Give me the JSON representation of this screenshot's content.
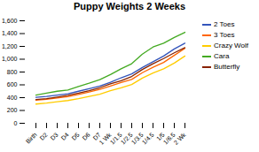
{
  "chart_data": {
    "type": "line",
    "title": "Puppy Weights 2 Weeks",
    "categories": [
      "Birth",
      "D2",
      "D3",
      "D4",
      "D5",
      "D6",
      "D7",
      "1 Wk",
      "1/1.5",
      "1/2.5",
      "1/3.5",
      "1/4.5",
      "1/5",
      "1/6.5",
      "2 Wk"
    ],
    "series": [
      {
        "name": "2 Toes",
        "color": "#3355BB",
        "values": [
          405,
          420,
          440,
          460,
          500,
          540,
          580,
          640,
          710,
          770,
          870,
          960,
          1050,
          1160,
          1250
        ]
      },
      {
        "name": "3 Toes",
        "color": "#FF6600",
        "values": [
          360,
          375,
          395,
          415,
          450,
          488,
          528,
          580,
          635,
          685,
          790,
          875,
          950,
          1060,
          1170
        ]
      },
      {
        "name": "Crazy Wolf",
        "color": "#FFCC00",
        "values": [
          300,
          315,
          335,
          355,
          385,
          420,
          455,
          510,
          555,
          605,
          705,
          785,
          850,
          940,
          1050
        ]
      },
      {
        "name": "Cara",
        "color": "#44AA22",
        "values": [
          440,
          470,
          500,
          520,
          575,
          625,
          680,
          760,
          850,
          930,
          1080,
          1190,
          1250,
          1340,
          1420
        ]
      },
      {
        "name": "Butterfly",
        "color": "#882200",
        "values": [
          370,
          385,
          410,
          435,
          470,
          510,
          555,
          615,
          665,
          730,
          840,
          930,
          1010,
          1100,
          1180
        ]
      }
    ],
    "ylim": [
      0,
      1600
    ],
    "yticks": [
      0,
      200,
      400,
      600,
      800,
      1000,
      1200,
      1400,
      1600
    ],
    "grid": false,
    "legend": "right"
  }
}
